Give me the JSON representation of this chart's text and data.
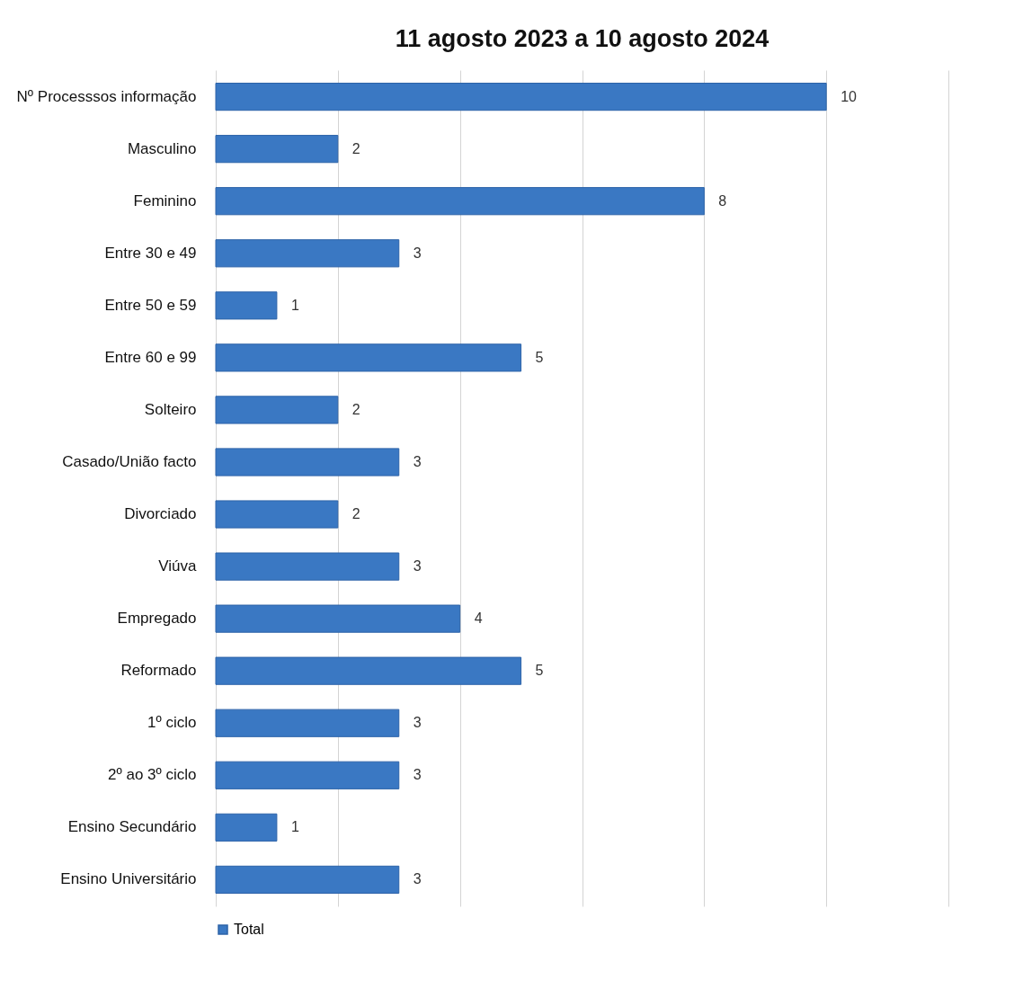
{
  "chart_data": {
    "type": "bar",
    "orientation": "horizontal",
    "title": "11 agosto 2023 a 10 agosto 2024",
    "categories": [
      "Nº Processsos informação",
      "Masculino",
      "Feminino",
      "Entre 30 e 49",
      "Entre 50 e 59",
      "Entre 60 e 99",
      "Solteiro",
      "Casado/União facto",
      "Divorciado",
      "Viúva",
      "Empregado",
      "Reformado",
      "1º ciclo",
      "2º ao 3º ciclo",
      "Ensino Secundário",
      "Ensino Universitário"
    ],
    "series": [
      {
        "name": "Total",
        "color": "#3a78c3",
        "values": [
          10,
          2,
          8,
          3,
          1,
          5,
          2,
          3,
          2,
          3,
          4,
          5,
          3,
          3,
          1,
          3
        ]
      }
    ],
    "xlim": [
      0,
      12
    ],
    "xticks": [
      {
        "value": 0,
        "label": null
      },
      {
        "value": 2,
        "label": null
      },
      {
        "value": 4,
        "label": null
      },
      {
        "value": 6,
        "label": null
      },
      {
        "value": 8,
        "label": null
      },
      {
        "value": 10,
        "label": null
      },
      {
        "value": 12,
        "label": null
      }
    ],
    "tick_labels": "y",
    "grid": "x",
    "data_labels": true,
    "legend": "bottom"
  }
}
